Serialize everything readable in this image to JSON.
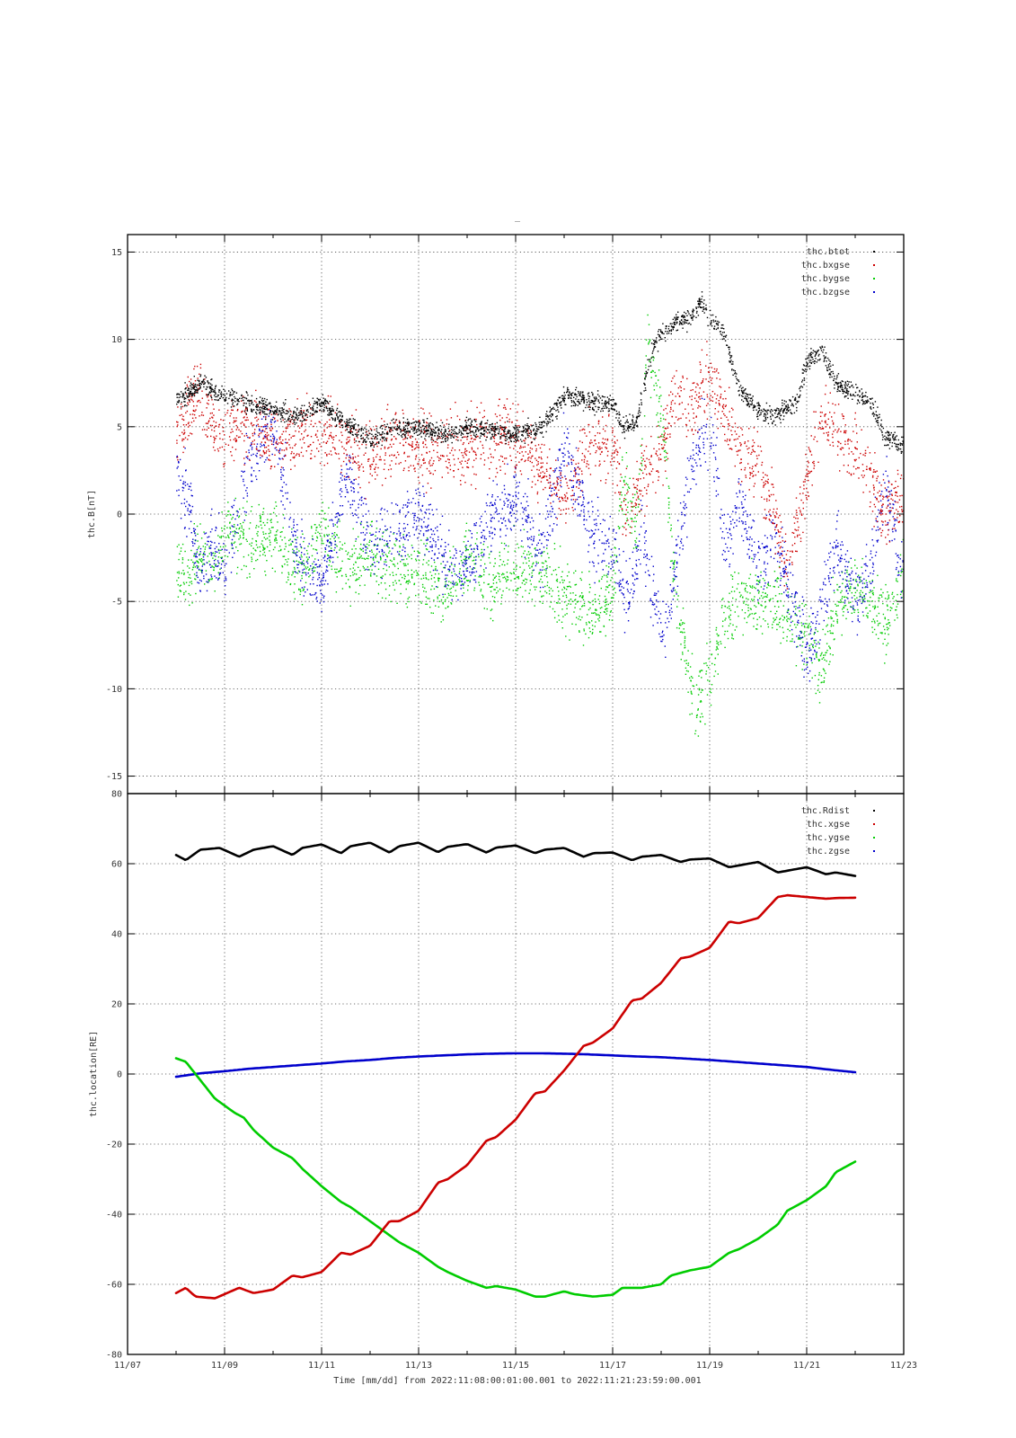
{
  "page": {
    "background": "#ffffff",
    "top_title": "_"
  },
  "footer": {
    "xlabel": "Time [mm/dd]  from 2022:11:08:00:01:00.001  to  2022:11:21:23:59:00.001"
  },
  "x_axis": {
    "type": "time",
    "range": [
      "2022-11-07",
      "2022-11-23"
    ],
    "ticks": [
      "11/07",
      "11/09",
      "11/11",
      "11/13",
      "11/15",
      "11/17",
      "11/19",
      "11/21",
      "11/23"
    ],
    "tick_values": [
      "2022-11-07",
      "2022-11-09",
      "2022-11-11",
      "2022-11-13",
      "2022-11-15",
      "2022-11-17",
      "2022-11-19",
      "2022-11-21",
      "2022-11-23"
    ],
    "minor_step_days": 1
  },
  "chart_data": [
    {
      "type": "scatter",
      "panel": "top",
      "ylabel": "thc.B[nT]",
      "ylim": [
        -16,
        16
      ],
      "yticks": [
        15,
        10,
        5,
        0,
        -5,
        -10,
        -15
      ],
      "grid": true,
      "legend_position": "top-right",
      "x_unit": "day of 2022-11 (decimal)",
      "series": [
        {
          "name": "thc.btot",
          "color": "#000000",
          "x": [
            8.0,
            8.25,
            8.5,
            8.75,
            9.0,
            9.5,
            10.0,
            10.5,
            11.0,
            11.5,
            12.0,
            12.5,
            13.0,
            13.5,
            14.0,
            14.5,
            15.0,
            15.5,
            16.0,
            16.5,
            17.0,
            17.2,
            17.5,
            17.8,
            18.0,
            18.3,
            18.6,
            18.8,
            19.0,
            19.3,
            19.6,
            20.0,
            20.3,
            20.6,
            20.8,
            21.0,
            21.3,
            21.6,
            22.0,
            22.3,
            22.6,
            23.0
          ],
          "y": [
            6.5,
            7.0,
            7.6,
            7.0,
            6.8,
            6.3,
            6.0,
            5.6,
            6.4,
            5.2,
            4.2,
            5.0,
            4.9,
            4.6,
            5.0,
            4.9,
            4.6,
            4.9,
            6.8,
            6.5,
            6.3,
            5.0,
            5.4,
            9.5,
            10.4,
            11.0,
            11.3,
            12.2,
            11.2,
            10.3,
            7.2,
            6.0,
            5.6,
            6.1,
            6.5,
            8.8,
            9.5,
            7.4,
            7.0,
            6.5,
            4.5,
            3.9
          ]
        },
        {
          "name": "thc.bxgse",
          "color": "#cc0000",
          "x": [
            8.0,
            8.25,
            8.5,
            8.75,
            9.0,
            9.5,
            10.0,
            10.5,
            11.0,
            11.5,
            12.0,
            12.5,
            13.0,
            13.5,
            14.0,
            14.5,
            15.0,
            15.5,
            16.0,
            16.5,
            17.0,
            17.3,
            17.6,
            18.0,
            18.3,
            18.6,
            19.0,
            19.3,
            19.6,
            20.0,
            20.3,
            20.6,
            21.0,
            21.3,
            21.6,
            22.0,
            22.3,
            22.6,
            23.0
          ],
          "y": [
            5.0,
            6.0,
            7.0,
            5.0,
            4.5,
            5.2,
            4.0,
            4.5,
            4.8,
            4.2,
            3.0,
            4.5,
            4.0,
            3.8,
            3.9,
            4.4,
            4.6,
            2.5,
            1.0,
            3.8,
            4.0,
            0.0,
            2.0,
            4.0,
            7.0,
            6.0,
            8.0,
            5.5,
            4.0,
            3.0,
            0.0,
            -3.0,
            2.0,
            6.0,
            4.5,
            4.0,
            2.0,
            0.0,
            1.0
          ]
        },
        {
          "name": "thc.bygse",
          "color": "#00cc00",
          "x": [
            8.0,
            8.25,
            8.5,
            8.75,
            9.0,
            9.5,
            10.0,
            10.5,
            11.0,
            11.5,
            12.0,
            12.5,
            13.0,
            13.5,
            14.0,
            14.5,
            15.0,
            15.5,
            16.0,
            16.5,
            17.0,
            17.2,
            17.5,
            17.7,
            18.0,
            18.3,
            18.6,
            18.8,
            19.0,
            19.3,
            19.6,
            20.0,
            20.3,
            20.6,
            21.0,
            21.3,
            21.6,
            22.0,
            22.3,
            22.6,
            23.0
          ],
          "y": [
            -3.0,
            -3.5,
            -2.0,
            -3.5,
            -1.0,
            -1.5,
            -1.0,
            -3.5,
            -1.0,
            -3.0,
            -2.5,
            -3.0,
            -3.5,
            -4.5,
            -2.5,
            -4.0,
            -3.0,
            -3.5,
            -4.5,
            -5.5,
            -4.5,
            2.0,
            -1.0,
            9.5,
            6.0,
            -5.0,
            -10.0,
            -10.8,
            -9.0,
            -6.0,
            -4.5,
            -4.8,
            -5.0,
            -5.5,
            -7.0,
            -9.0,
            -5.0,
            -4.0,
            -5.0,
            -6.5,
            -3.0
          ]
        },
        {
          "name": "thc.bzgse",
          "color": "#0000cc",
          "x": [
            8.0,
            8.25,
            8.5,
            8.75,
            9.0,
            9.5,
            10.0,
            10.5,
            11.0,
            11.5,
            12.0,
            12.5,
            13.0,
            13.5,
            14.0,
            14.5,
            15.0,
            15.5,
            16.0,
            16.5,
            17.0,
            17.3,
            17.6,
            18.0,
            18.3,
            18.6,
            19.0,
            19.3,
            19.6,
            20.0,
            20.3,
            20.6,
            21.0,
            21.3,
            21.6,
            22.0,
            22.3,
            22.6,
            23.0
          ],
          "y": [
            2.0,
            1.0,
            -3.5,
            -2.0,
            -3.0,
            3.0,
            5.0,
            -2.5,
            -4.0,
            2.5,
            -2.0,
            -1.0,
            0.0,
            -2.5,
            -3.0,
            0.0,
            1.0,
            -2.5,
            4.0,
            -1.0,
            -2.0,
            -5.0,
            -1.0,
            -7.0,
            -3.0,
            3.0,
            5.0,
            -2.0,
            1.0,
            -3.0,
            -1.5,
            -4.0,
            -8.0,
            -5.0,
            -2.0,
            -5.0,
            -3.0,
            2.0,
            -4.0
          ]
        }
      ]
    },
    {
      "type": "line",
      "panel": "bottom",
      "ylabel": "thc.location[RE]",
      "ylim": [
        -80,
        80
      ],
      "yticks": [
        80,
        60,
        40,
        20,
        0,
        -20,
        -40,
        -60,
        -80
      ],
      "grid": true,
      "legend_position": "top-right",
      "x_unit": "day of 2022-11 (decimal)",
      "series": [
        {
          "name": "thc.Rdist",
          "color": "#000000",
          "x": [
            8.0,
            8.2,
            8.5,
            8.9,
            9.3,
            9.6,
            10.0,
            10.4,
            10.6,
            11.0,
            11.4,
            11.6,
            12.0,
            12.4,
            12.6,
            13.0,
            13.4,
            13.6,
            14.0,
            14.4,
            14.6,
            15.0,
            15.4,
            15.6,
            16.0,
            16.4,
            16.6,
            17.0,
            17.4,
            17.6,
            18.0,
            18.4,
            18.6,
            19.0,
            19.4,
            19.6,
            20.0,
            20.4,
            20.6,
            21.0,
            21.4,
            21.6,
            22.0
          ],
          "y": [
            62.5,
            61.0,
            64.0,
            64.5,
            62.0,
            64.0,
            65.0,
            62.5,
            64.5,
            65.5,
            63.0,
            65.0,
            66.0,
            63.2,
            65.0,
            66.0,
            63.3,
            64.8,
            65.6,
            63.2,
            64.6,
            65.2,
            63.0,
            64.0,
            64.5,
            62.0,
            63.0,
            63.2,
            61.0,
            62.0,
            62.5,
            60.5,
            61.2,
            61.5,
            59.0,
            59.5,
            60.5,
            57.5,
            58.0,
            59.0,
            57.0,
            57.5,
            56.5
          ]
        },
        {
          "name": "thc.xgse",
          "color": "#cc0000",
          "x": [
            8.0,
            8.2,
            8.4,
            8.8,
            9.3,
            9.6,
            10.0,
            10.4,
            10.6,
            11.0,
            11.4,
            11.6,
            12.0,
            12.4,
            12.6,
            13.0,
            13.4,
            13.6,
            14.0,
            14.4,
            14.6,
            15.0,
            15.4,
            15.6,
            16.0,
            16.4,
            16.6,
            17.0,
            17.4,
            17.6,
            18.0,
            18.4,
            18.6,
            19.0,
            19.4,
            19.6,
            20.0,
            20.4,
            20.6,
            21.0,
            21.4,
            21.6,
            22.0
          ],
          "y": [
            -62.5,
            -61.0,
            -63.5,
            -64.0,
            -61.0,
            -62.5,
            -61.5,
            -57.5,
            -58.0,
            -56.5,
            -51.0,
            -51.5,
            -49.0,
            -42.0,
            -42.0,
            -39.0,
            -31.0,
            -30.0,
            -26.0,
            -19.0,
            -18.0,
            -13.0,
            -5.5,
            -5.0,
            1.0,
            8.0,
            9.0,
            13.0,
            21.0,
            21.5,
            26.0,
            33.0,
            33.5,
            36.0,
            43.5,
            43.0,
            44.5,
            50.5,
            51.0,
            50.5,
            50.0,
            50.2,
            50.3
          ]
        },
        {
          "name": "thc.ygse",
          "color": "#00cc00",
          "x": [
            8.0,
            8.2,
            8.4,
            8.8,
            9.2,
            9.4,
            9.6,
            10.0,
            10.4,
            10.6,
            11.0,
            11.4,
            11.6,
            12.0,
            12.4,
            12.6,
            13.0,
            13.4,
            13.6,
            14.0,
            14.4,
            14.6,
            15.0,
            15.4,
            15.6,
            16.0,
            16.2,
            16.6,
            17.0,
            17.2,
            17.6,
            18.0,
            18.2,
            18.6,
            19.0,
            19.4,
            19.6,
            20.0,
            20.4,
            20.6,
            21.0,
            21.4,
            21.6,
            22.0
          ],
          "y": [
            4.5,
            3.5,
            0.0,
            -7.0,
            -11.0,
            -12.5,
            -16.0,
            -21.0,
            -24.0,
            -27.0,
            -32.0,
            -36.5,
            -38.0,
            -42.0,
            -46.0,
            -48.0,
            -51.0,
            -55.0,
            -56.5,
            -59.0,
            -61.0,
            -60.5,
            -61.5,
            -63.5,
            -63.5,
            -62.0,
            -62.8,
            -63.5,
            -63.0,
            -61.0,
            -61.0,
            -60.0,
            -57.5,
            -56.0,
            -55.0,
            -51.0,
            -50.0,
            -47.0,
            -43.0,
            -39.0,
            -36.0,
            -32.0,
            -28.0,
            -25.0
          ]
        },
        {
          "name": "thc.zgse",
          "color": "#0000cc",
          "x": [
            8.0,
            8.5,
            9.0,
            9.5,
            10.0,
            10.5,
            11.0,
            11.5,
            12.0,
            12.5,
            13.0,
            13.5,
            14.0,
            14.5,
            15.0,
            15.5,
            16.0,
            16.5,
            17.0,
            17.5,
            18.0,
            18.5,
            19.0,
            19.5,
            20.0,
            20.5,
            21.0,
            21.5,
            22.0
          ],
          "y": [
            -0.8,
            0.2,
            0.8,
            1.5,
            2.0,
            2.5,
            3.0,
            3.6,
            4.0,
            4.6,
            5.0,
            5.3,
            5.6,
            5.8,
            5.9,
            5.9,
            5.8,
            5.6,
            5.3,
            5.0,
            4.8,
            4.4,
            4.0,
            3.5,
            3.0,
            2.5,
            2.0,
            1.2,
            0.5
          ]
        }
      ]
    }
  ]
}
